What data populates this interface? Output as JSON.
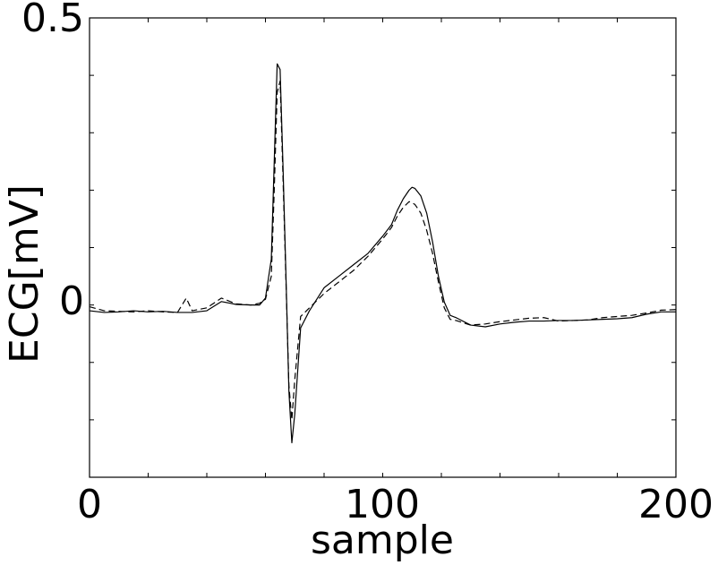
{
  "chart_data": {
    "type": "line",
    "title": "",
    "xlabel": "sample",
    "ylabel": "ECG[mV]",
    "xlim": [
      0,
      200
    ],
    "ylim": [
      -0.3,
      0.5
    ],
    "x_tick_labels": [
      "0",
      "100",
      "200"
    ],
    "y_tick_labels": [
      "0",
      "0.5"
    ],
    "grid": false,
    "legend": "none",
    "series": [
      {
        "style": "solid",
        "color": "#000000",
        "x": [
          0,
          5,
          10,
          15,
          20,
          25,
          30,
          35,
          40,
          45,
          50,
          55,
          58,
          60,
          62,
          63,
          64,
          65,
          66,
          67,
          68,
          69,
          70,
          72,
          75,
          80,
          85,
          90,
          95,
          100,
          103,
          105,
          107,
          109,
          110,
          111,
          113,
          115,
          117,
          119,
          121,
          123,
          125,
          130,
          135,
          140,
          145,
          150,
          155,
          160,
          165,
          170,
          175,
          180,
          185,
          190,
          195,
          200
        ],
        "values": [
          -0.01,
          -0.013,
          -0.012,
          -0.01,
          -0.012,
          -0.011,
          -0.013,
          -0.013,
          -0.01,
          0.006,
          0.001,
          0.0,
          0.0,
          0.012,
          0.08,
          0.25,
          0.42,
          0.41,
          0.24,
          0.05,
          -0.15,
          -0.24,
          -0.19,
          -0.04,
          -0.01,
          0.03,
          0.05,
          0.07,
          0.09,
          0.12,
          0.14,
          0.165,
          0.185,
          0.2,
          0.205,
          0.203,
          0.19,
          0.16,
          0.11,
          0.05,
          0.005,
          -0.018,
          -0.022,
          -0.035,
          -0.038,
          -0.033,
          -0.03,
          -0.028,
          -0.028,
          -0.027,
          -0.027,
          -0.026,
          -0.025,
          -0.024,
          -0.022,
          -0.016,
          -0.012,
          -0.012
        ]
      },
      {
        "style": "dashed",
        "color": "#000000",
        "x": [
          0,
          5,
          10,
          15,
          20,
          25,
          30,
          33,
          35,
          40,
          45,
          50,
          55,
          58,
          60,
          62,
          63,
          64,
          65,
          66,
          67,
          68,
          69,
          70,
          72,
          75,
          80,
          85,
          90,
          95,
          100,
          103,
          105,
          107,
          109,
          110,
          111,
          113,
          115,
          117,
          119,
          121,
          123,
          125,
          130,
          135,
          140,
          145,
          150,
          155,
          160,
          165,
          170,
          175,
          180,
          185,
          190,
          195,
          200
        ],
        "values": [
          -0.003,
          -0.01,
          -0.011,
          -0.012,
          -0.01,
          -0.012,
          -0.013,
          0.012,
          -0.01,
          -0.005,
          0.012,
          0.002,
          0.0,
          0.003,
          0.01,
          0.05,
          0.2,
          0.37,
          0.39,
          0.22,
          0.04,
          -0.14,
          -0.2,
          -0.13,
          -0.02,
          -0.005,
          0.02,
          0.04,
          0.06,
          0.085,
          0.115,
          0.135,
          0.155,
          0.17,
          0.18,
          0.178,
          0.175,
          0.16,
          0.13,
          0.09,
          0.04,
          -0.005,
          -0.025,
          -0.027,
          -0.035,
          -0.033,
          -0.029,
          -0.026,
          -0.023,
          -0.022,
          -0.028,
          -0.027,
          -0.026,
          -0.022,
          -0.02,
          -0.018,
          -0.014,
          -0.009,
          -0.008
        ]
      }
    ]
  }
}
